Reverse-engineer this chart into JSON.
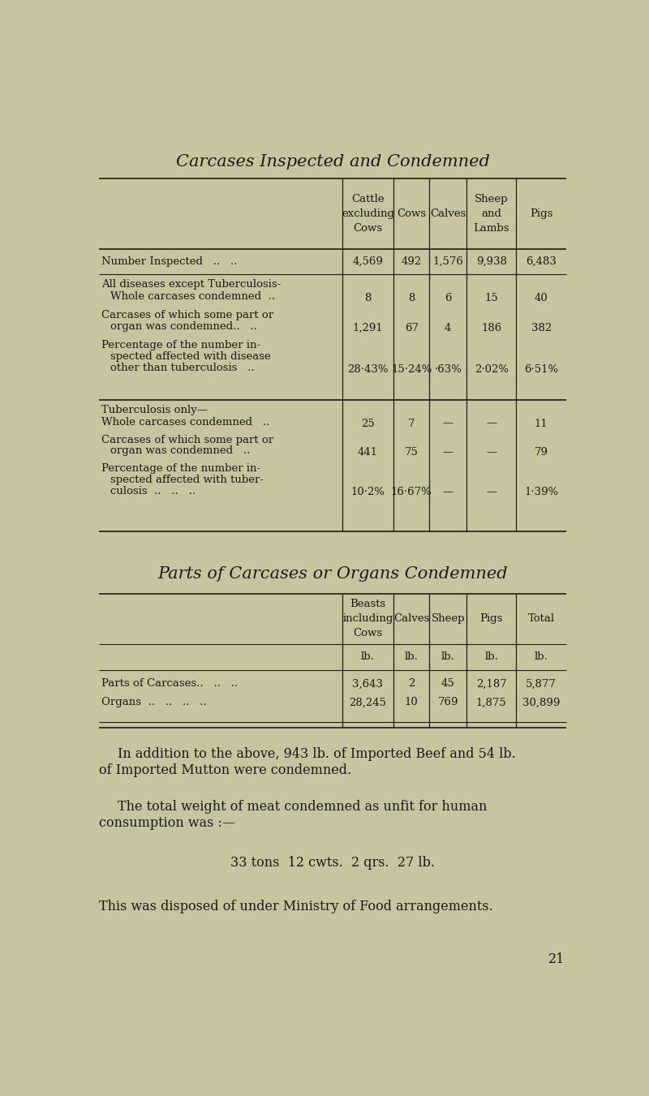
{
  "bg_color": "#c8c4a0",
  "text_color": "#1a1a1a",
  "title1": "Carcases Inspected and Condemned",
  "title2": "Parts of Carcases or Organs Condemned",
  "page_num": "21"
}
